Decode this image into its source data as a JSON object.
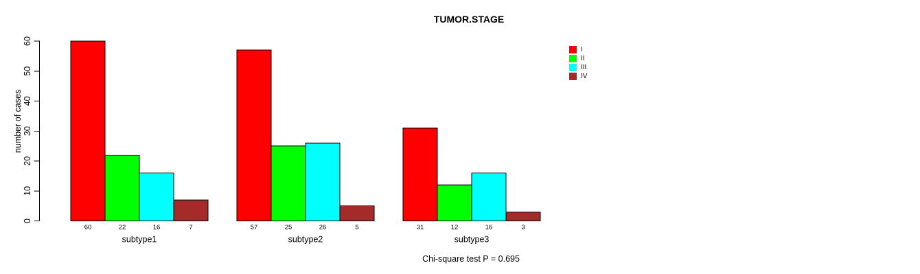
{
  "title": "TUMOR.STAGE",
  "note": "Chi-square test P = 0.695",
  "chart_data": {
    "type": "bar",
    "title": "TUMOR.STAGE",
    "ylabel": "number of cases",
    "xlabel": "",
    "categories": [
      "subtype1",
      "subtype2",
      "subtype3"
    ],
    "series": [
      {
        "name": "I",
        "color": "#ff0000",
        "values": [
          60,
          57,
          31
        ]
      },
      {
        "name": "II",
        "color": "#00ff00",
        "values": [
          22,
          25,
          12
        ]
      },
      {
        "name": "III",
        "color": "#00ffff",
        "values": [
          16,
          26,
          16
        ]
      },
      {
        "name": "IV",
        "color": "#a52a2a",
        "values": [
          7,
          5,
          3
        ]
      }
    ],
    "bar_value_labels": true,
    "ylim": [
      0,
      60
    ],
    "yticks": [
      0,
      10,
      20,
      30,
      40,
      50,
      60
    ],
    "grid": false,
    "legend_position": "top-right",
    "annotation": "Chi-square test P = 0.695",
    "bar_border_color": "#000000",
    "axis_color": "#000000",
    "background_color": "#ffffff"
  }
}
